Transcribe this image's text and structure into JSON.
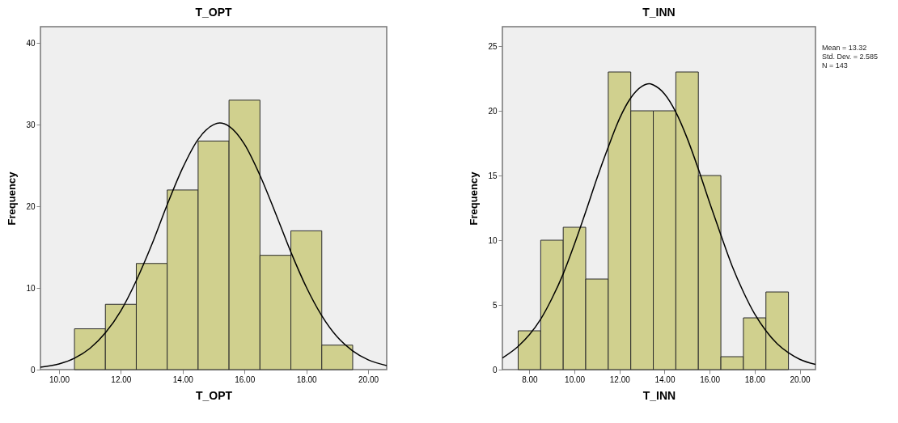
{
  "chart_data": [
    {
      "type": "histogram",
      "title": "T_OPT",
      "xlabel": "T_OPT",
      "ylabel": "Frequency",
      "bins": [
        10.5,
        11.5,
        12.5,
        13.5,
        14.5,
        15.5,
        16.5,
        17.5,
        18.5,
        19.5
      ],
      "grid": false,
      "series": [
        {
          "type": "histogram",
          "color": "#d0d08e",
          "values": [
            5,
            8,
            13,
            22,
            28,
            33,
            14,
            17,
            3
          ]
        },
        {
          "type": "line",
          "color": "#000000",
          "x": [
            9.4,
            10,
            10.5,
            11,
            11.5,
            12,
            12.5,
            13,
            13.5,
            14,
            14.5,
            15,
            15.2,
            15.5,
            16,
            16.5,
            17,
            17.5,
            18,
            18.5,
            19,
            19.5,
            20,
            20.6
          ],
          "values": [
            0.3,
            0.7,
            1.4,
            2.6,
            4.5,
            7.2,
            10.9,
            15.3,
            20.2,
            24.7,
            28.2,
            30.0,
            30.2,
            29.8,
            27.6,
            23.8,
            19.2,
            14.4,
            10.1,
            6.6,
            4.0,
            2.3,
            1.2,
            0.5
          ]
        }
      ],
      "xlim": [
        9.4,
        20.6
      ],
      "xticks": [
        {
          "value": 10,
          "label": "10.00"
        },
        {
          "value": 12,
          "label": "12.00"
        },
        {
          "value": 14,
          "label": "14.00"
        },
        {
          "value": 16,
          "label": "16.00"
        },
        {
          "value": 18,
          "label": "18.00"
        },
        {
          "value": 20,
          "label": "20.00"
        }
      ],
      "ylim": [
        0,
        42
      ],
      "yticks": [
        0,
        10,
        20,
        30,
        40
      ]
    },
    {
      "type": "histogram",
      "title": "T_INN",
      "xlabel": "T_INN",
      "ylabel": "Frequency",
      "bins": [
        7.5,
        8.5,
        9.5,
        10.5,
        11.5,
        12.5,
        13.5,
        14.5,
        15.5,
        16.5,
        17.5,
        18.5,
        19.5
      ],
      "grid": false,
      "series": [
        {
          "type": "histogram",
          "color": "#d0d08e",
          "values": [
            3,
            10,
            11,
            7,
            23,
            20,
            20,
            23,
            15,
            1,
            4,
            6
          ]
        },
        {
          "type": "line",
          "color": "#000000",
          "x": [
            6.8,
            7.5,
            8,
            8.5,
            9,
            9.5,
            10,
            10.5,
            11,
            11.5,
            12,
            12.5,
            13,
            13.32,
            13.5,
            14,
            14.5,
            15,
            15.5,
            16,
            16.5,
            17,
            17.5,
            18,
            18.5,
            19,
            19.5,
            20,
            20.7
          ],
          "values": [
            0.9,
            1.8,
            2.7,
            3.9,
            5.5,
            7.4,
            9.7,
            12.2,
            14.8,
            17.2,
            19.4,
            21.0,
            21.9,
            22.1,
            22.0,
            21.3,
            19.9,
            17.9,
            15.5,
            12.9,
            10.4,
            8.0,
            6.0,
            4.3,
            3.0,
            2.0,
            1.3,
            0.8,
            0.4
          ]
        }
      ],
      "xlim": [
        6.8,
        20.7
      ],
      "xticks": [
        {
          "value": 8,
          "label": "8.00"
        },
        {
          "value": 10,
          "label": "10.00"
        },
        {
          "value": 12,
          "label": "12.00"
        },
        {
          "value": 14,
          "label": "14.00"
        },
        {
          "value": 16,
          "label": "16.00"
        },
        {
          "value": 18,
          "label": "18.00"
        },
        {
          "value": 20,
          "label": "20.00"
        }
      ],
      "ylim": [
        0,
        26.5
      ],
      "yticks": [
        0,
        5,
        10,
        15,
        20,
        25
      ],
      "annotations": [
        "Mean = 13.32",
        "Std. Dev. = 2.585",
        "N = 143"
      ]
    }
  ]
}
